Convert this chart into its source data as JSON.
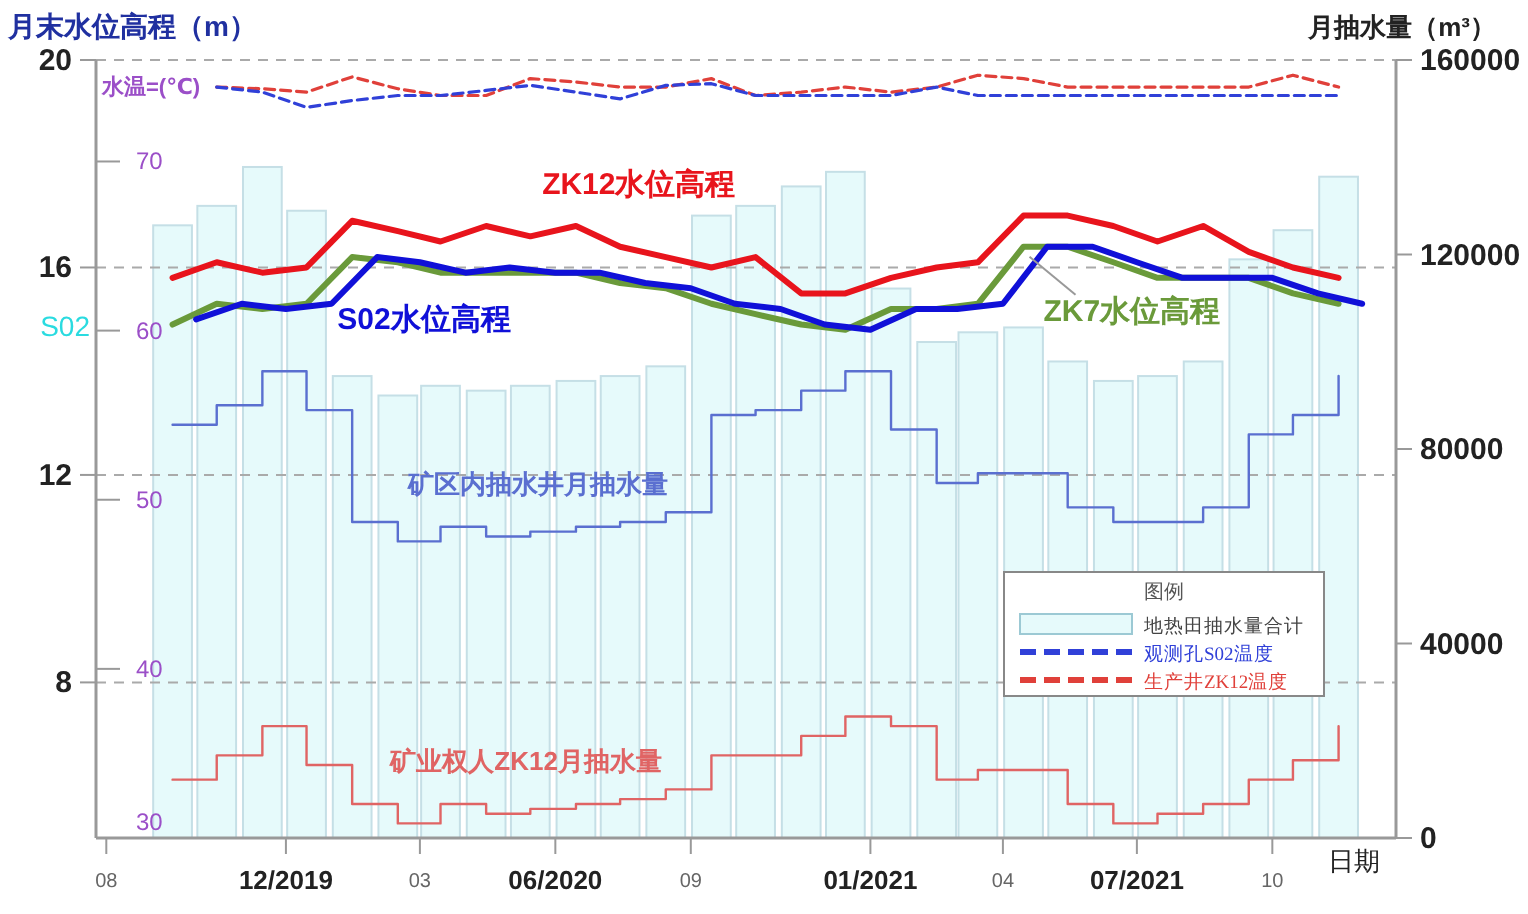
{
  "chart_data": {
    "type": "bar",
    "ylabel": "月末水位高程（m）",
    "y2label": "月抽水量（m³）",
    "y3label": "水温=(℃)",
    "xlabel": "日期",
    "legend_title": "图例",
    "xlim": [
      "2019-07-25",
      "2021-12-24"
    ],
    "xticks": [
      {
        "value": "2019-08",
        "label": "08"
      },
      {
        "value": "2019-12",
        "label": "12/2019"
      },
      {
        "value": "2020-03",
        "label": "03"
      },
      {
        "value": "2020-06",
        "label": "06/2020"
      },
      {
        "value": "2020-09",
        "label": "09"
      },
      {
        "value": "2021-01",
        "label": "01/2021"
      },
      {
        "value": "2021-04",
        "label": "04"
      },
      {
        "value": "2021-07",
        "label": "07/2021"
      },
      {
        "value": "2021-10",
        "label": "10"
      }
    ],
    "ylim": [
      5,
      20
    ],
    "yticks": [
      8,
      12,
      16,
      20
    ],
    "y2lim": [
      0,
      160000
    ],
    "y2ticks": [
      0,
      40000,
      80000,
      120000,
      160000
    ],
    "y3lim": [
      30,
      76
    ],
    "y3ticks": [
      30,
      40,
      50,
      60,
      70
    ],
    "grid": "y",
    "legend": "right",
    "x": [
      "2019-09-15",
      "2019-10-15",
      "2019-11-15",
      "2019-12-15",
      "2020-01-15",
      "2020-02-15",
      "2020-03-15",
      "2020-04-15",
      "2020-05-15",
      "2020-06-15",
      "2020-07-15",
      "2020-08-15",
      "2020-09-15",
      "2020-10-15",
      "2020-11-15",
      "2020-12-15",
      "2021-01-15",
      "2021-02-15",
      "2021-03-15",
      "2021-04-15",
      "2021-05-15",
      "2021-06-15",
      "2021-07-15",
      "2021-08-15",
      "2021-09-15",
      "2021-10-15",
      "2021-11-15"
    ],
    "series": [
      {
        "name": "地热田抽水量合计",
        "axis": "y2",
        "color": "#e6fafb",
        "values": [
          126000,
          130000,
          138000,
          129000,
          95000,
          91000,
          93000,
          92000,
          93000,
          94000,
          95000,
          97000,
          128000,
          130000,
          134000,
          137000,
          113000,
          102000,
          104000,
          105000,
          98000,
          94000,
          95000,
          98000,
          119000,
          125000,
          136000
        ]
      },
      {
        "name": "ZK12水位高程",
        "type": "line",
        "axis": "y",
        "color": "#e8141c",
        "values": [
          15.8,
          16.1,
          15.9,
          16.0,
          16.9,
          16.7,
          16.5,
          16.8,
          16.6,
          16.8,
          16.4,
          16.2,
          16.0,
          16.2,
          15.5,
          15.5,
          15.8,
          16.0,
          16.1,
          17.0,
          17.0,
          16.8,
          16.5,
          16.8,
          16.3,
          16.0,
          15.8
        ]
      },
      {
        "name": "S02水位高程",
        "type": "line",
        "axis": "y",
        "color": "#1010d8",
        "x": [
          "2019-10-01",
          "2019-11-01",
          "2019-12-01",
          "2020-01-01",
          "2020-02-01",
          "2020-03-01",
          "2020-04-01",
          "2020-05-01",
          "2020-06-01",
          "2020-07-01",
          "2020-08-01",
          "2020-09-01",
          "2020-10-01",
          "2020-11-01",
          "2020-12-01",
          "2021-01-01",
          "2021-02-01",
          "2021-03-01",
          "2021-04-01",
          "2021-05-01",
          "2021-06-01",
          "2021-07-01",
          "2021-08-01",
          "2021-09-01",
          "2021-10-01",
          "2021-11-01",
          "2021-12-01"
        ],
        "values": [
          15.0,
          15.3,
          15.2,
          15.3,
          16.2,
          16.1,
          15.9,
          16.0,
          15.9,
          15.9,
          15.7,
          15.6,
          15.3,
          15.2,
          14.9,
          14.8,
          15.2,
          15.2,
          15.3,
          16.4,
          16.4,
          16.1,
          15.8,
          15.8,
          15.8,
          15.5,
          15.3
        ]
      },
      {
        "name": "ZK7水位高程",
        "type": "line",
        "axis": "y",
        "color": "#6a9a3a",
        "values": [
          14.9,
          15.3,
          15.2,
          15.3,
          16.2,
          16.1,
          15.9,
          15.9,
          15.9,
          15.9,
          15.7,
          15.6,
          15.3,
          15.1,
          14.9,
          14.8,
          15.2,
          15.2,
          15.3,
          16.4,
          16.4,
          16.1,
          15.8,
          15.8,
          15.8,
          15.5,
          15.3
        ]
      },
      {
        "name": "矿区内抽水井月抽水量",
        "type": "step",
        "axis": "y2",
        "color": "#5a6fd0",
        "values": [
          85000,
          89000,
          96000,
          88000,
          65000,
          61000,
          64000,
          62000,
          63000,
          64000,
          65000,
          67000,
          87000,
          88000,
          92000,
          96000,
          84000,
          73000,
          75000,
          75000,
          68000,
          65000,
          65000,
          68000,
          83000,
          87000,
          95000
        ]
      },
      {
        "name": "矿业权人ZK12月抽水量",
        "type": "step",
        "axis": "y2",
        "color": "#e06464",
        "values": [
          12000,
          17000,
          23000,
          15000,
          7000,
          3000,
          7000,
          5000,
          6000,
          7000,
          8000,
          10000,
          17000,
          17000,
          21000,
          25000,
          23000,
          12000,
          14000,
          14000,
          7000,
          3000,
          5000,
          7000,
          12000,
          16000,
          23000
        ]
      },
      {
        "name": "观测孔S02温度",
        "type": "line",
        "axis": "y3",
        "line_style": "dashed",
        "color": "#3040d8",
        "values": [
          null,
          74.4,
          74.1,
          73.2,
          73.6,
          73.9,
          73.9,
          74.2,
          74.5,
          74.1,
          73.7,
          74.5,
          74.6,
          73.9,
          73.9,
          73.9,
          73.9,
          74.4,
          73.9,
          73.9,
          73.9,
          73.9,
          73.9,
          73.9,
          73.9,
          73.9,
          73.9
        ]
      },
      {
        "name": "生产井ZK12温度",
        "type": "line",
        "axis": "y3",
        "line_style": "dashed",
        "color": "#e0403a",
        "values": [
          null,
          74.4,
          74.3,
          74.1,
          75.0,
          74.3,
          73.9,
          73.9,
          74.9,
          74.7,
          74.4,
          74.4,
          74.9,
          73.9,
          74.1,
          74.4,
          74.1,
          74.4,
          75.1,
          74.9,
          74.4,
          74.4,
          74.4,
          74.4,
          74.4,
          75.1,
          74.4
        ]
      }
    ],
    "annotations": [
      "S02"
    ]
  }
}
